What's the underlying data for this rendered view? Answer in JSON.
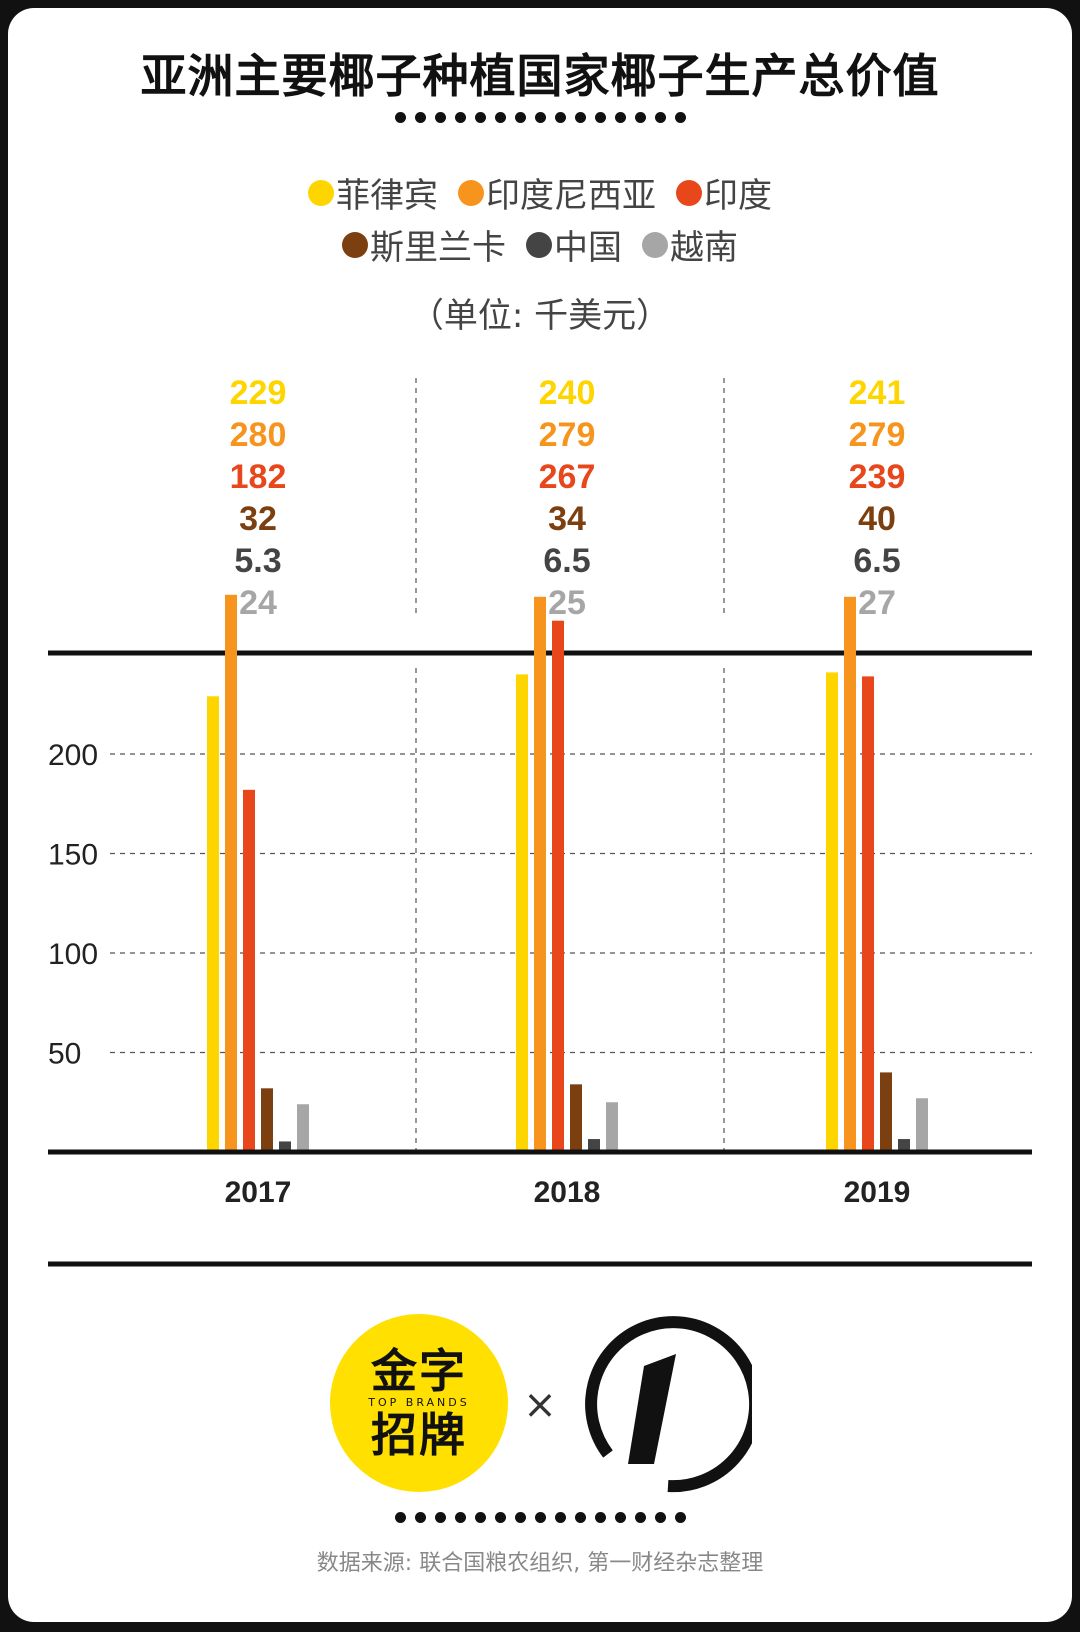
{
  "title": "亚洲主要椰子种植国家椰子生产总价值",
  "unit_note": "（单位: 千美元）",
  "legend_rows": [
    [
      {
        "label": "菲律宾",
        "color": "#FFD500"
      },
      {
        "label": "印度尼西亚",
        "color": "#F7941D"
      },
      {
        "label": "印度",
        "color": "#E8471C"
      }
    ],
    [
      {
        "label": "斯里兰卡",
        "color": "#7B3F10"
      },
      {
        "label": "中国",
        "color": "#444444"
      },
      {
        "label": "越南",
        "color": "#A6A6A6"
      }
    ]
  ],
  "chart_data": {
    "type": "bar",
    "title": "亚洲主要椰子种植国家椰子生产总价值",
    "categories": [
      "2017",
      "2018",
      "2019"
    ],
    "series": [
      {
        "name": "菲律宾",
        "color": "#FFD500",
        "values": [
          229,
          240,
          241
        ]
      },
      {
        "name": "印度尼西亚",
        "color": "#F7941D",
        "values": [
          280,
          279,
          279
        ]
      },
      {
        "name": "印度",
        "color": "#E8471C",
        "values": [
          182,
          267,
          239
        ]
      },
      {
        "name": "斯里兰卡",
        "color": "#7B3F10",
        "values": [
          32,
          34,
          40
        ]
      },
      {
        "name": "中国",
        "color": "#444444",
        "values": [
          5.3,
          6.5,
          6.5
        ]
      },
      {
        "name": "越南",
        "color": "#A6A6A6",
        "values": [
          24,
          25,
          27
        ]
      }
    ],
    "value_labels": [
      [
        "229",
        "280",
        "182",
        "32",
        "5.3",
        "24"
      ],
      [
        "240",
        "279",
        "267",
        "34",
        "6.5",
        "25"
      ],
      [
        "241",
        "279",
        "239",
        "40",
        "6.5",
        "27"
      ]
    ],
    "yticks": [
      50,
      100,
      150,
      200
    ],
    "ylim": [
      0,
      250
    ],
    "grid": true,
    "legend": "top"
  },
  "footer": {
    "logo_left_top": "金字",
    "logo_left_en": "TOP BRANDS",
    "logo_left_bottom": "招牌",
    "times": "×",
    "source": "数据来源: 联合国粮农组织, 第一财经杂志整理"
  }
}
